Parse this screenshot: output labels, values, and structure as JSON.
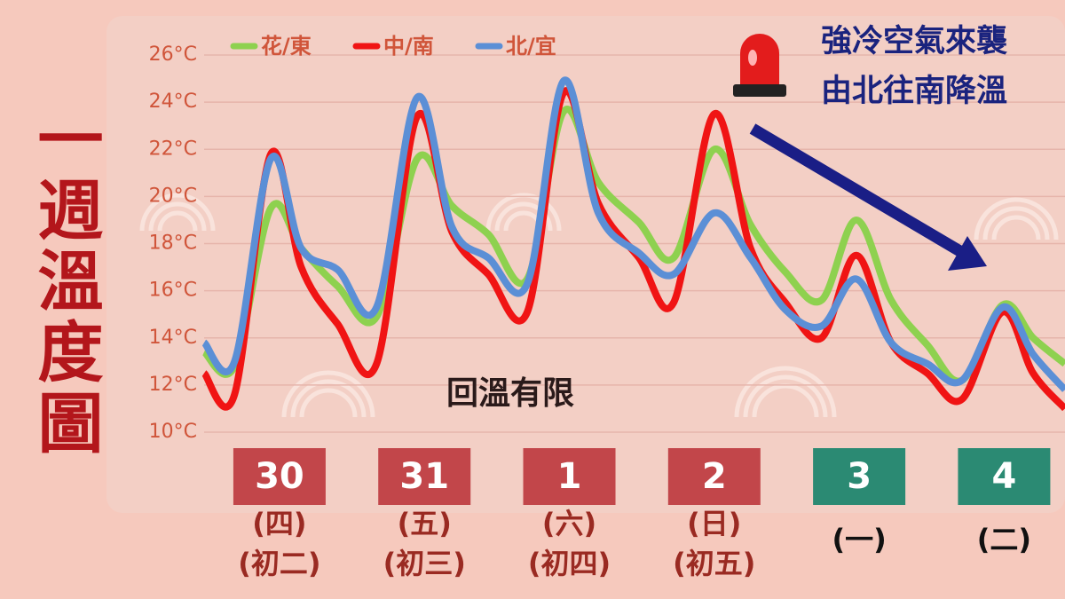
{
  "chart_data": {
    "type": "line",
    "title": "一週溫度圖",
    "x": [
      -0.52,
      -0.31,
      -0.06,
      0.15,
      0.4,
      0.67,
      0.95,
      1.19,
      1.44,
      1.71,
      1.96,
      2.2,
      2.48,
      2.72,
      3.0,
      3.25,
      3.49,
      3.74,
      3.98,
      4.22,
      4.47,
      4.71,
      4.99,
      5.2,
      5.42
    ],
    "series": [
      {
        "name": "花/東",
        "color": "#8ed14f",
        "values": [
          13.4,
          12.8,
          19.5,
          17.8,
          16.2,
          14.9,
          21.6,
          19.6,
          18.4,
          16.5,
          23.6,
          20.6,
          18.9,
          17.4,
          22.0,
          18.8,
          16.8,
          15.6,
          19.0,
          15.6,
          13.7,
          12.2,
          15.4,
          14.0,
          12.9
        ]
      },
      {
        "name": "中/南",
        "color": "#f01414",
        "values": [
          12.5,
          11.6,
          21.8,
          17.0,
          14.6,
          12.9,
          23.4,
          18.5,
          16.7,
          15.1,
          24.4,
          19.7,
          17.4,
          15.5,
          23.5,
          17.8,
          15.5,
          14.0,
          17.5,
          13.8,
          12.5,
          11.4,
          15.1,
          12.5,
          11.0
        ]
      },
      {
        "name": "北/宜",
        "color": "#5b8fd6",
        "values": [
          13.8,
          13.0,
          21.6,
          17.8,
          16.9,
          15.3,
          24.2,
          18.7,
          17.4,
          16.3,
          24.9,
          19.3,
          17.6,
          16.7,
          19.3,
          17.4,
          15.2,
          14.5,
          16.5,
          13.8,
          12.9,
          12.2,
          15.3,
          13.3,
          11.8
        ]
      }
    ],
    "xlim": [
      -0.52,
      5.42
    ],
    "xticks": [
      {
        "value": 0,
        "label": "30"
      },
      {
        "value": 1,
        "label": "31"
      },
      {
        "value": 2,
        "label": "1"
      },
      {
        "value": 3,
        "label": "2"
      },
      {
        "value": 4,
        "label": "3"
      },
      {
        "value": 5,
        "label": "4"
      }
    ],
    "xtick_colors": [
      "#c2464a",
      "#c2464a",
      "#c2464a",
      "#c2464a",
      "#2b8a73",
      "#2b8a73"
    ],
    "weekdays": [
      "(四)",
      "(五)",
      "(六)",
      "(日)",
      "(一)",
      "(二)"
    ],
    "lunar": [
      "(初二)",
      "(初三)",
      "(初四)",
      "(初五)"
    ],
    "ylim": [
      10,
      26
    ],
    "yticks": [
      {
        "value": 10,
        "label": "10°C"
      },
      {
        "value": 12,
        "label": "12°C"
      },
      {
        "value": 14,
        "label": "14°C"
      },
      {
        "value": 16,
        "label": "16°C"
      },
      {
        "value": 18,
        "label": "18°C"
      },
      {
        "value": 20,
        "label": "20°C"
      },
      {
        "value": 22,
        "label": "22°C"
      },
      {
        "value": 24,
        "label": "24°C"
      },
      {
        "value": 26,
        "label": "26°C"
      }
    ],
    "grid": true
  },
  "annotations": [
    "強冷空氣來襲",
    "由北往南降溫",
    "回溫有限"
  ]
}
